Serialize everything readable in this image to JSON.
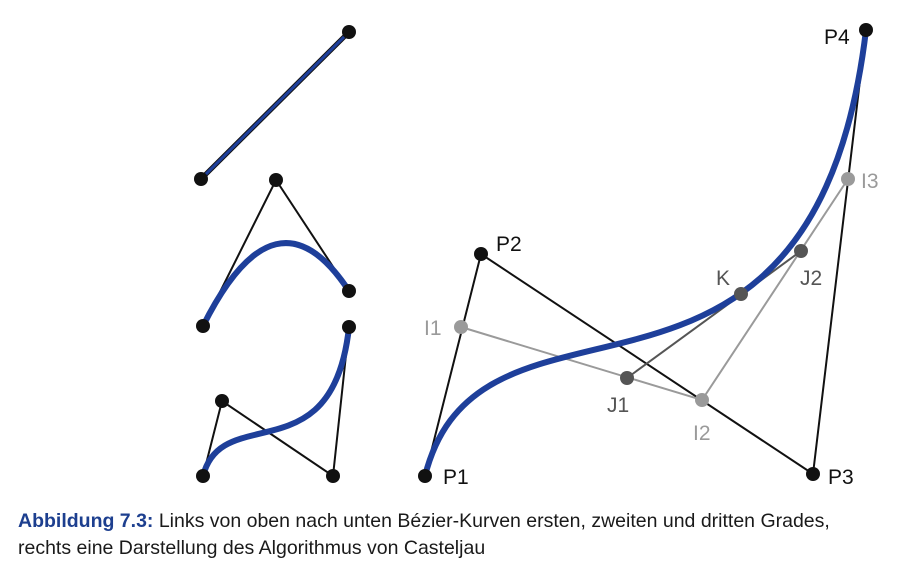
{
  "figure": {
    "labels": {
      "p1": "P1",
      "p2": "P2",
      "p3": "P3",
      "p4": "P4",
      "i1": "I1",
      "i2": "I2",
      "i3": "I3",
      "j1": "J1",
      "j2": "J2",
      "k": "K"
    },
    "colors": {
      "curve": "#1e3f9a",
      "control_polygon": "#111111",
      "first_level": "#9a9a9a",
      "second_level": "#555555",
      "point": "#111111"
    }
  },
  "caption": {
    "label": "Abbildung 7.3:",
    "text": " Links von oben nach unten Bézier-Kurven ersten, zweiten und dritten Grades, rechts eine Darstellung des Algorithmus von Casteljau"
  }
}
